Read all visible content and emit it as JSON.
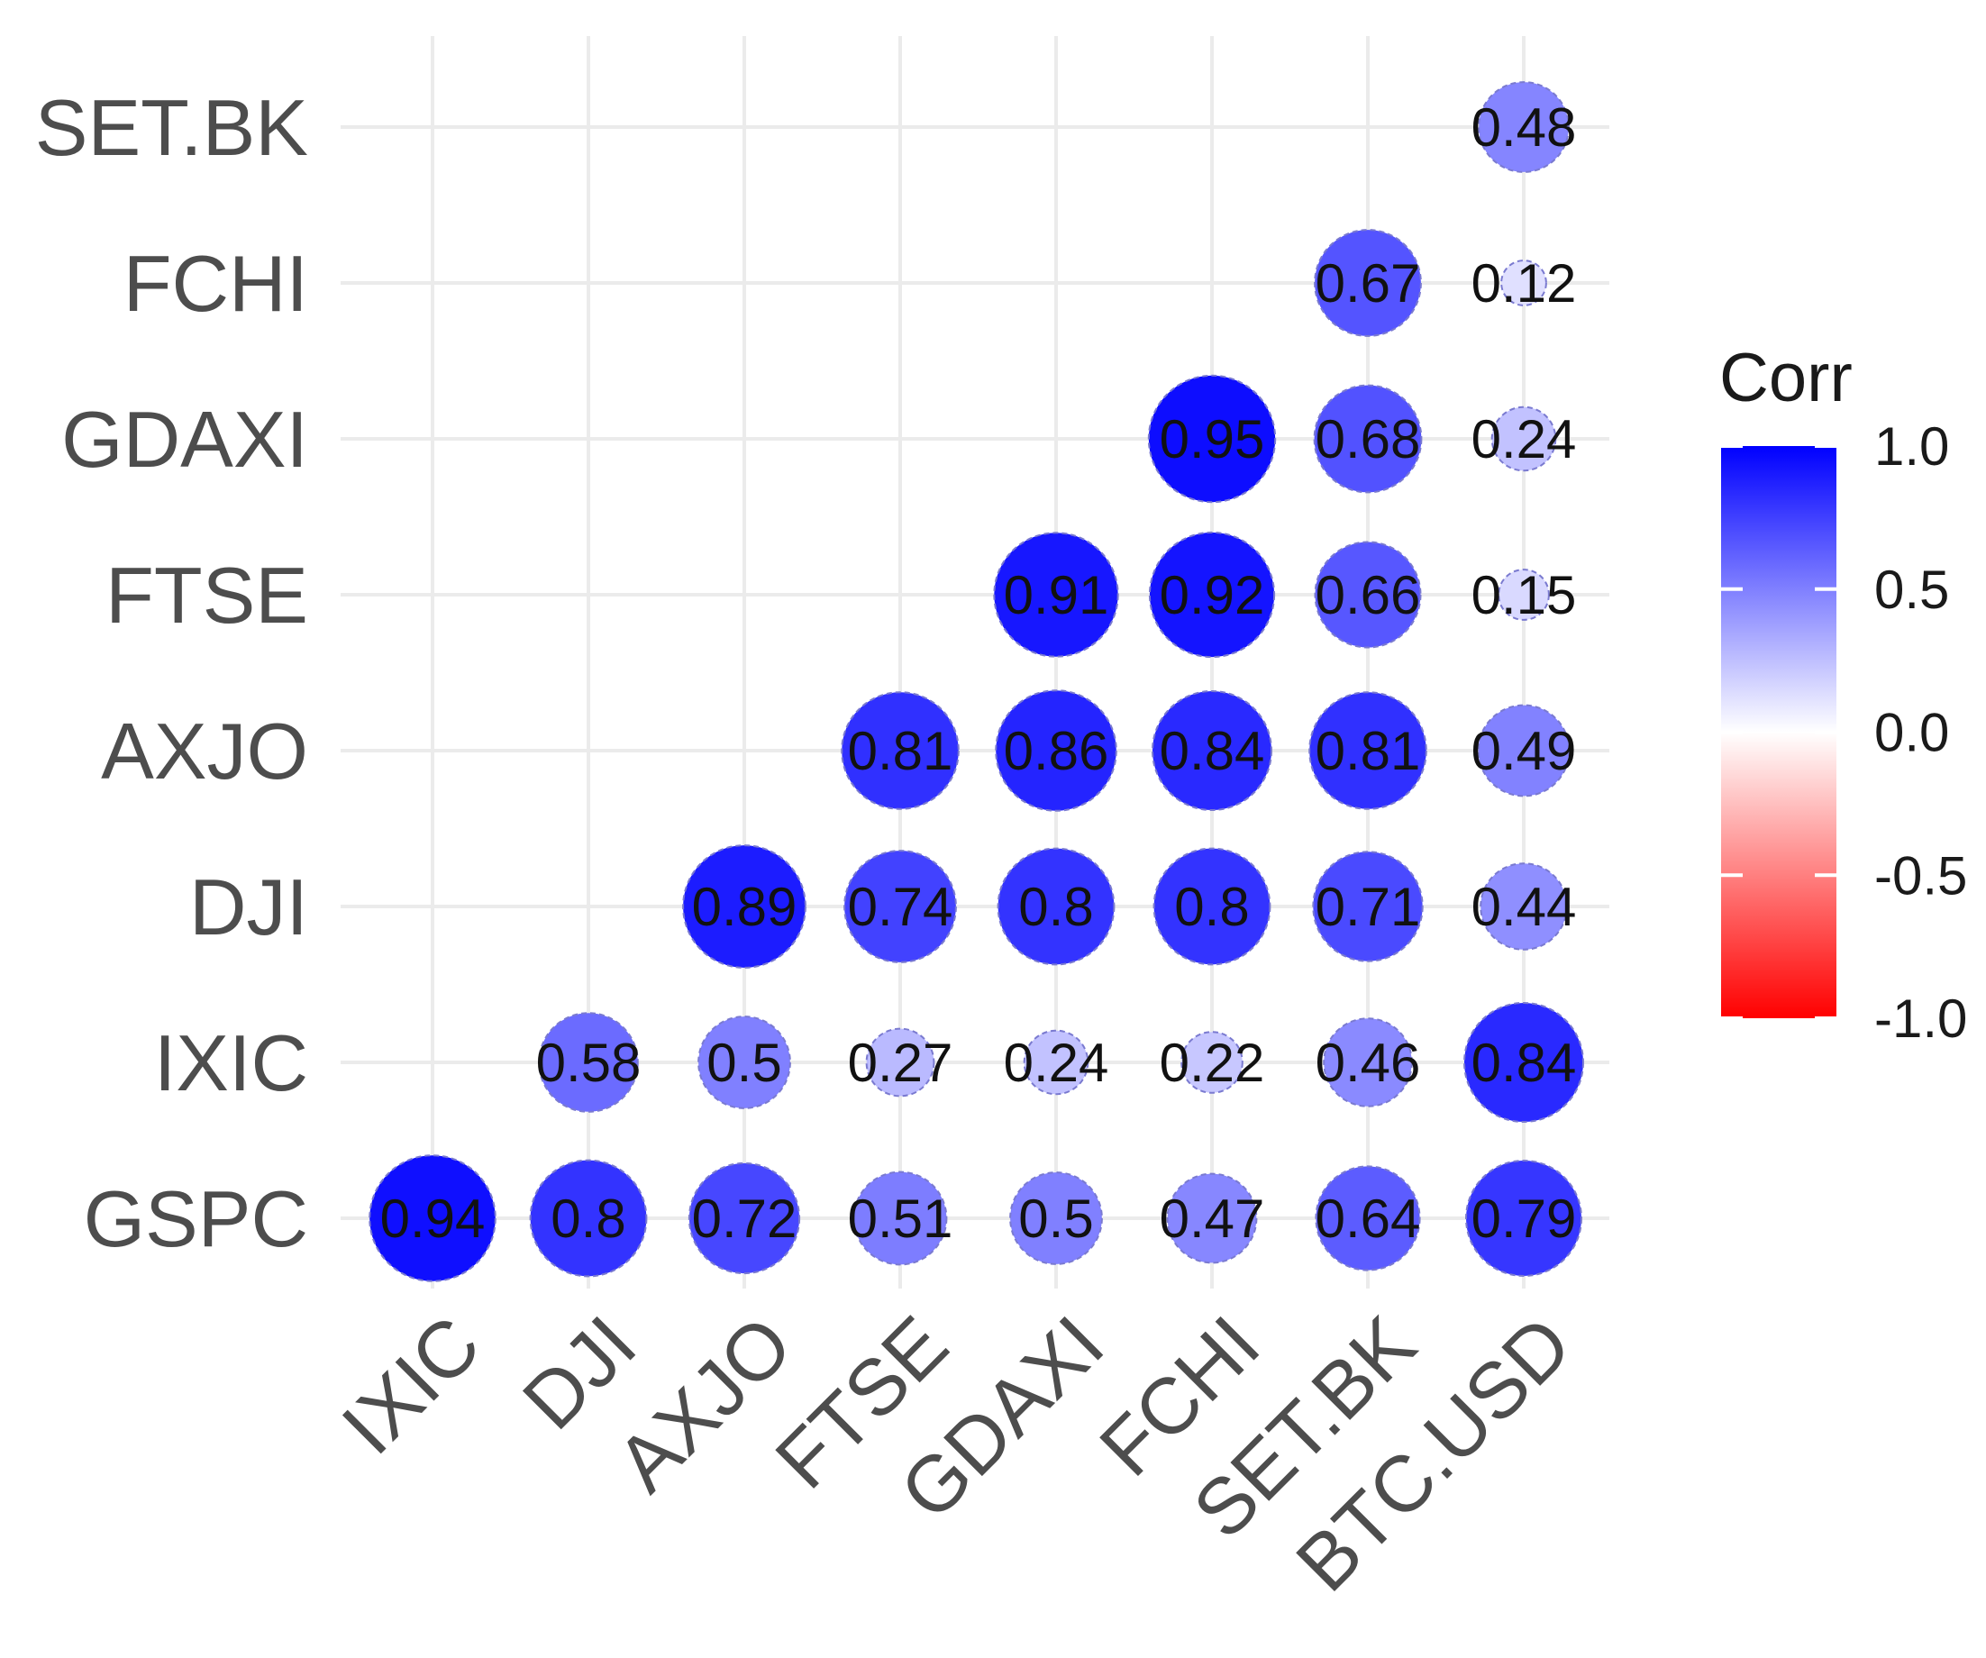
{
  "chart_data": {
    "type": "heatmap",
    "style": "correlation-circles-lower-triangle",
    "x_categories": [
      "IXIC",
      "DJI",
      "AXJO",
      "FTSE",
      "GDAXI",
      "FCHI",
      "SET.BK",
      "BTC.USD"
    ],
    "y_categories": [
      "GSPC",
      "IXIC",
      "DJI",
      "AXJO",
      "FTSE",
      "GDAXI",
      "FCHI",
      "SET.BK"
    ],
    "cells": [
      {
        "x": "IXIC",
        "y": "GSPC",
        "value": 0.94,
        "label": "0.94"
      },
      {
        "x": "DJI",
        "y": "GSPC",
        "value": 0.8,
        "label": "0.8"
      },
      {
        "x": "AXJO",
        "y": "GSPC",
        "value": 0.72,
        "label": "0.72"
      },
      {
        "x": "FTSE",
        "y": "GSPC",
        "value": 0.51,
        "label": "0.51"
      },
      {
        "x": "GDAXI",
        "y": "GSPC",
        "value": 0.5,
        "label": "0.5"
      },
      {
        "x": "FCHI",
        "y": "GSPC",
        "value": 0.47,
        "label": "0.47"
      },
      {
        "x": "SET.BK",
        "y": "GSPC",
        "value": 0.64,
        "label": "0.64"
      },
      {
        "x": "BTC.USD",
        "y": "GSPC",
        "value": 0.79,
        "label": "0.79"
      },
      {
        "x": "DJI",
        "y": "IXIC",
        "value": 0.58,
        "label": "0.58"
      },
      {
        "x": "AXJO",
        "y": "IXIC",
        "value": 0.5,
        "label": "0.5"
      },
      {
        "x": "FTSE",
        "y": "IXIC",
        "value": 0.27,
        "label": "0.27"
      },
      {
        "x": "GDAXI",
        "y": "IXIC",
        "value": 0.24,
        "label": "0.24"
      },
      {
        "x": "FCHI",
        "y": "IXIC",
        "value": 0.22,
        "label": "0.22"
      },
      {
        "x": "SET.BK",
        "y": "IXIC",
        "value": 0.46,
        "label": "0.46"
      },
      {
        "x": "BTC.USD",
        "y": "IXIC",
        "value": 0.84,
        "label": "0.84"
      },
      {
        "x": "AXJO",
        "y": "DJI",
        "value": 0.89,
        "label": "0.89"
      },
      {
        "x": "FTSE",
        "y": "DJI",
        "value": 0.74,
        "label": "0.74"
      },
      {
        "x": "GDAXI",
        "y": "DJI",
        "value": 0.8,
        "label": "0.8"
      },
      {
        "x": "FCHI",
        "y": "DJI",
        "value": 0.8,
        "label": "0.8"
      },
      {
        "x": "SET.BK",
        "y": "DJI",
        "value": 0.71,
        "label": "0.71"
      },
      {
        "x": "BTC.USD",
        "y": "DJI",
        "value": 0.44,
        "label": "0.44"
      },
      {
        "x": "FTSE",
        "y": "AXJO",
        "value": 0.81,
        "label": "0.81"
      },
      {
        "x": "GDAXI",
        "y": "AXJO",
        "value": 0.86,
        "label": "0.86"
      },
      {
        "x": "FCHI",
        "y": "AXJO",
        "value": 0.84,
        "label": "0.84"
      },
      {
        "x": "SET.BK",
        "y": "AXJO",
        "value": 0.81,
        "label": "0.81"
      },
      {
        "x": "BTC.USD",
        "y": "AXJO",
        "value": 0.49,
        "label": "0.49"
      },
      {
        "x": "GDAXI",
        "y": "FTSE",
        "value": 0.91,
        "label": "0.91"
      },
      {
        "x": "FCHI",
        "y": "FTSE",
        "value": 0.92,
        "label": "0.92"
      },
      {
        "x": "SET.BK",
        "y": "FTSE",
        "value": 0.66,
        "label": "0.66"
      },
      {
        "x": "BTC.USD",
        "y": "FTSE",
        "value": 0.15,
        "label": "0.15"
      },
      {
        "x": "FCHI",
        "y": "GDAXI",
        "value": 0.95,
        "label": "0.95"
      },
      {
        "x": "SET.BK",
        "y": "GDAXI",
        "value": 0.68,
        "label": "0.68"
      },
      {
        "x": "BTC.USD",
        "y": "GDAXI",
        "value": 0.24,
        "label": "0.24"
      },
      {
        "x": "SET.BK",
        "y": "FCHI",
        "value": 0.67,
        "label": "0.67"
      },
      {
        "x": "BTC.USD",
        "y": "FCHI",
        "value": 0.12,
        "label": "0.12"
      },
      {
        "x": "BTC.USD",
        "y": "SET.BK",
        "value": 0.48,
        "label": "0.48"
      }
    ],
    "legend": {
      "title": "Corr",
      "placement": "right",
      "range": [
        -1.0,
        1.0
      ],
      "ticks": [
        1.0,
        0.5,
        0.0,
        -0.5,
        -1.0
      ],
      "tick_labels": [
        "1.0",
        "0.5",
        "0.0",
        "-0.5",
        "-1.0"
      ],
      "colors": {
        "high": "#0000ff",
        "mid": "#ffffff",
        "low": "#ff0000"
      }
    },
    "grid": true,
    "title": "",
    "xlabel": "",
    "ylabel": ""
  }
}
